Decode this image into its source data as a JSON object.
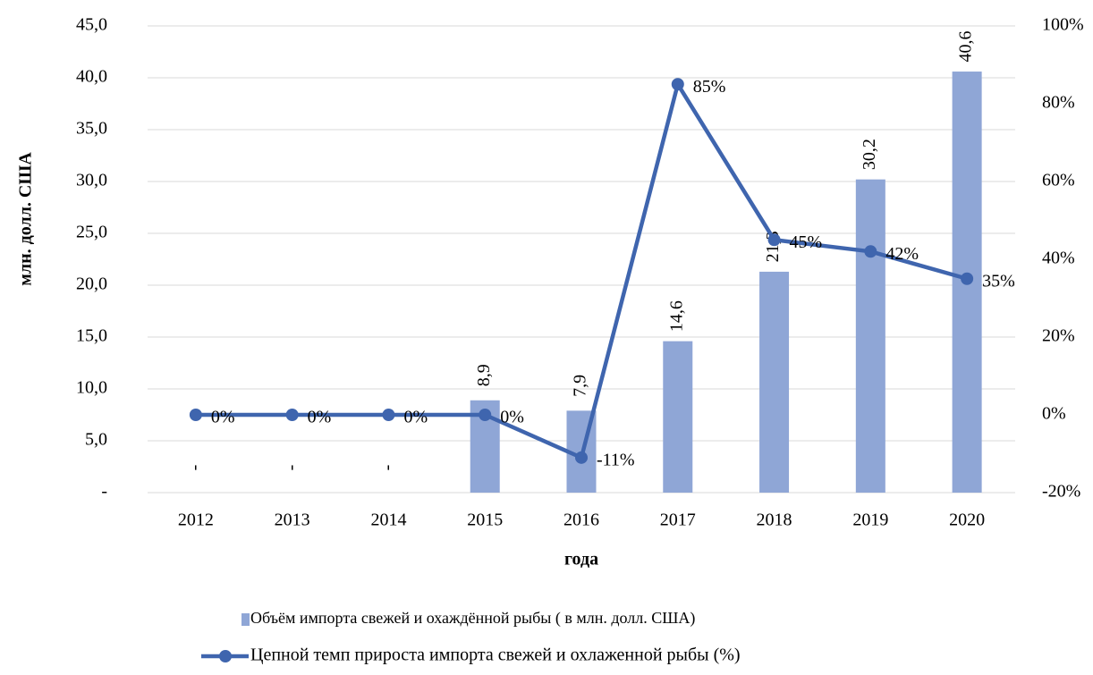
{
  "chart_data": {
    "type": "bar-line",
    "x_label": "года",
    "y_label": "млн. долл. США",
    "categories": [
      "2012",
      "2013",
      "2014",
      "2015",
      "2016",
      "2017",
      "2018",
      "2019",
      "2020"
    ],
    "series": [
      {
        "name": "Объём импорта свежей и охаждённой рыбы ( в млн. долл. США)",
        "type": "bar",
        "color": "#8fa6d6",
        "values": [
          0,
          0,
          0,
          8.9,
          7.9,
          14.6,
          21.3,
          30.2,
          40.6
        ],
        "value_labels": [
          "-",
          "-",
          "-",
          "8,9",
          "7,9",
          "14,6",
          "21,3",
          "30,2",
          "40,6"
        ]
      },
      {
        "name": "Цепной темп прироста импорта свежей и охлаженной рыбы (%)",
        "type": "line",
        "axis": "y2",
        "color": "#3f65ae",
        "values": [
          0,
          0,
          0,
          0,
          -11,
          85,
          45,
          42,
          35
        ],
        "value_labels": [
          "0%",
          "0%",
          "0%",
          "0%",
          "-11%",
          "85%",
          "45%",
          "42%",
          "35%"
        ]
      }
    ],
    "ylim": [
      0,
      45
    ],
    "yticks": [
      {
        "value": 0,
        "label": "-"
      },
      {
        "value": 5,
        "label": "5,0"
      },
      {
        "value": 10,
        "label": "10,0"
      },
      {
        "value": 15,
        "label": "15,0"
      },
      {
        "value": 20,
        "label": "20,0"
      },
      {
        "value": 25,
        "label": "25,0"
      },
      {
        "value": 30,
        "label": "30,0"
      },
      {
        "value": 35,
        "label": "35,0"
      },
      {
        "value": 40,
        "label": "40,0"
      },
      {
        "value": 45,
        "label": "45,0"
      }
    ],
    "y2lim": [
      -20,
      100
    ],
    "y2ticks": [
      {
        "value": -20,
        "label": "-20%"
      },
      {
        "value": 0,
        "label": "0%"
      },
      {
        "value": 20,
        "label": "20%"
      },
      {
        "value": 40,
        "label": "40%"
      },
      {
        "value": 60,
        "label": "60%"
      },
      {
        "value": 80,
        "label": "80%"
      },
      {
        "value": 100,
        "label": "100%"
      }
    ],
    "grid": true
  }
}
